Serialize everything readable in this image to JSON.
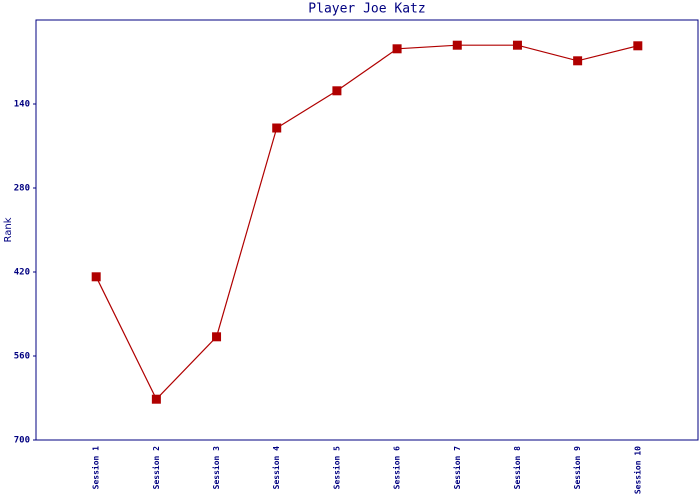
{
  "chart_data": {
    "type": "line",
    "title": "Player Joe Katz",
    "y_label": "Rank",
    "categories": [
      "Session 1",
      "Session 2",
      "Session 3",
      "Session 4",
      "Session 5",
      "Session 6",
      "Session 7",
      "Session 8",
      "Session 9",
      "Session 10"
    ],
    "series": [
      {
        "name": "Rank",
        "color": "#b00000",
        "values": [
          428,
          632,
          528,
          180,
          118,
          48,
          42,
          42,
          68,
          43
        ]
      }
    ],
    "ylim": [
      700,
      0
    ],
    "yticks": [
      140,
      280,
      420,
      560,
      700
    ]
  }
}
